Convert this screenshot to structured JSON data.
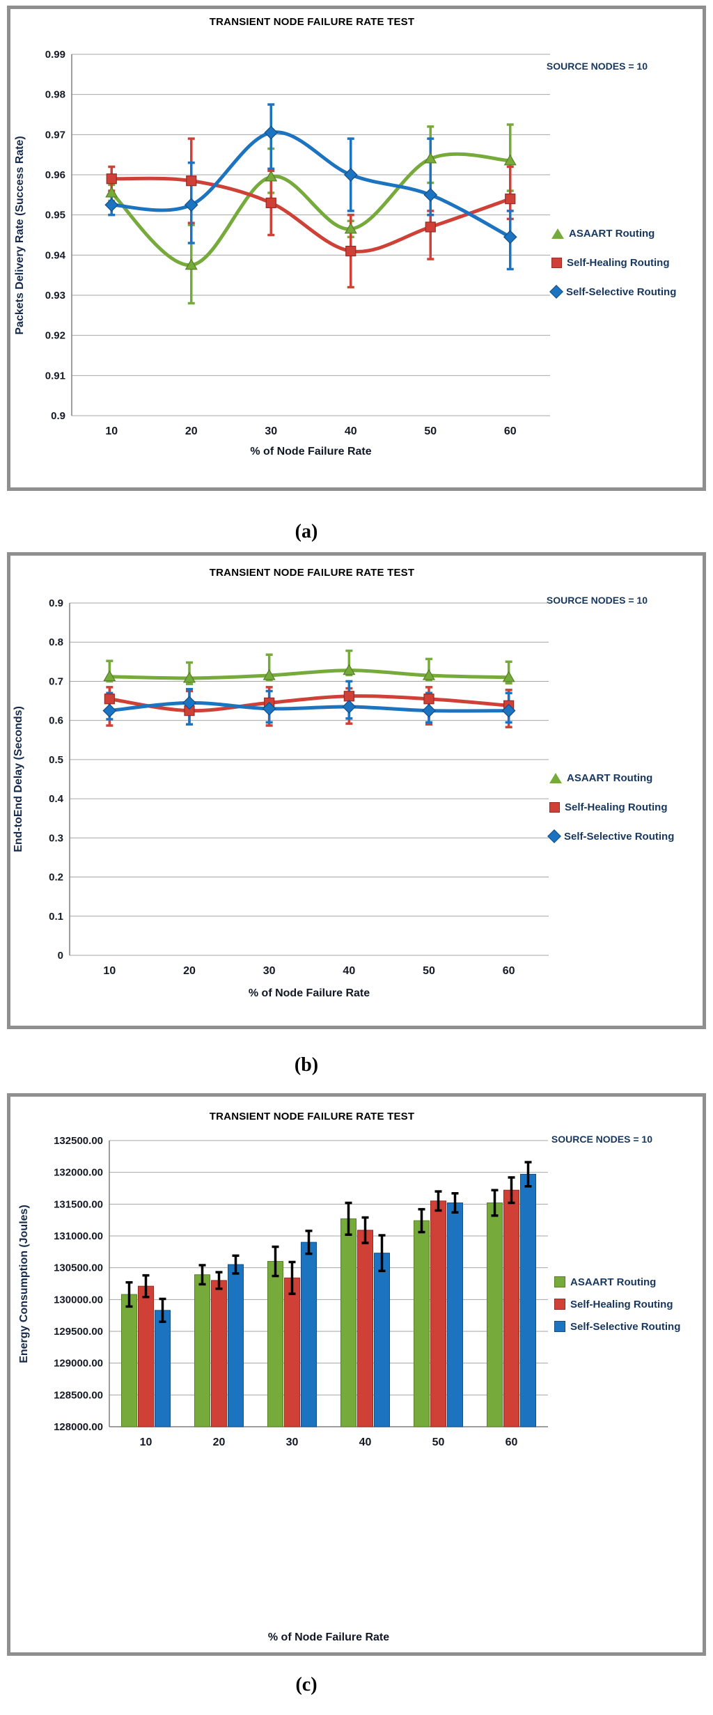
{
  "captions": [
    "(a)",
    "(b)",
    "(c)"
  ],
  "colors": {
    "asaart_green": "#76AB3C",
    "self_healing_red": "#CF4037",
    "self_selective_blue": "#1C73C0",
    "legend_text": "#17375E",
    "gridline": "#A6A6A6",
    "axis_line": "#7F7F7F",
    "panel_border": "#8F8F8F",
    "bar_error": "#000000"
  },
  "chart_data": [
    {
      "id": "a",
      "type": "line",
      "title": "TRANSIENT NODE FAILURE RATE TEST",
      "annotation": "SOURCE NODES = 10",
      "xlabel": "% of Node Failure Rate",
      "ylabel": "Packets Delivery Rate (Success Rate)",
      "categories": [
        10,
        20,
        30,
        40,
        50,
        60
      ],
      "ylim": [
        0.9,
        0.99
      ],
      "y_step": 0.01,
      "y_format": "trim",
      "grid": true,
      "legend_position": "right",
      "series": [
        {
          "name": "ASAART Routing",
          "color": "#76AB3C",
          "edge": "#567F26",
          "marker": "triangle",
          "values": [
            0.9555,
            0.9375,
            0.9595,
            0.9465,
            0.964,
            0.9635
          ],
          "err_up": [
            0.002,
            0.01,
            0.007,
            0.002,
            0.008,
            0.009
          ],
          "err_down": [
            0.002,
            0.0095,
            0.004,
            0.002,
            0.006,
            0.0075
          ]
        },
        {
          "name": "Self-Healing Routing",
          "color": "#CF4037",
          "edge": "#962B24",
          "marker": "square",
          "values": [
            0.959,
            0.9585,
            0.953,
            0.941,
            0.947,
            0.954
          ],
          "err_up": [
            0.003,
            0.0105,
            0.008,
            0.009,
            0.004,
            0.008
          ],
          "err_down": [
            0.003,
            0.0105,
            0.008,
            0.009,
            0.008,
            0.005
          ]
        },
        {
          "name": "Self-Selective Routing",
          "color": "#1C73C0",
          "edge": "#134E87",
          "marker": "diamond",
          "values": [
            0.9525,
            0.9525,
            0.9705,
            0.96,
            0.955,
            0.9445
          ],
          "err_up": [
            0.0025,
            0.0105,
            0.007,
            0.009,
            0.014,
            0.0065
          ],
          "err_down": [
            0.0025,
            0.0095,
            0.009,
            0.009,
            0.005,
            0.008
          ]
        }
      ]
    },
    {
      "id": "b",
      "type": "line",
      "title": "TRANSIENT NODE FAILURE RATE TEST",
      "annotation": "SOURCE NODES = 10",
      "xlabel": "% of Node Failure Rate",
      "ylabel": "End-toEnd Delay (Seconds)",
      "categories": [
        10,
        20,
        30,
        40,
        50,
        60
      ],
      "ylim": [
        0,
        0.9
      ],
      "y_step": 0.1,
      "y_format": "trim",
      "grid": true,
      "legend_position": "right",
      "series": [
        {
          "name": "ASAART Routing",
          "color": "#76AB3C",
          "edge": "#567F26",
          "marker": "triangle",
          "values": [
            0.712,
            0.708,
            0.715,
            0.728,
            0.715,
            0.71
          ],
          "err_up": [
            0.04,
            0.04,
            0.053,
            0.05,
            0.042,
            0.04
          ],
          "err_down": [
            0.012,
            0.015,
            0.012,
            0.012,
            0.012,
            0.015
          ]
        },
        {
          "name": "Self-Healing Routing",
          "color": "#CF4037",
          "edge": "#962B24",
          "marker": "square",
          "values": [
            0.655,
            0.625,
            0.645,
            0.662,
            0.655,
            0.638
          ],
          "err_up": [
            0.03,
            0.05,
            0.04,
            0.02,
            0.03,
            0.04
          ],
          "err_down": [
            0.068,
            0.035,
            0.058,
            0.07,
            0.065,
            0.055
          ]
        },
        {
          "name": "Self-Selective Routing",
          "color": "#1C73C0",
          "edge": "#134E87",
          "marker": "diamond",
          "values": [
            0.625,
            0.645,
            0.63,
            0.635,
            0.625,
            0.625
          ],
          "err_up": [
            0.045,
            0.035,
            0.045,
            0.065,
            0.045,
            0.045
          ],
          "err_down": [
            0.022,
            0.055,
            0.035,
            0.03,
            0.03,
            0.03
          ]
        }
      ]
    },
    {
      "id": "c",
      "type": "bar",
      "title": "TRANSIENT NODE FAILURE RATE TEST",
      "annotation": "SOURCE NODES = 10",
      "xlabel": "% of Node Failure Rate",
      "ylabel": "Energy Consumption (Joules)",
      "categories": [
        10,
        20,
        30,
        40,
        50,
        60
      ],
      "ylim": [
        128000,
        132500
      ],
      "y_step": 500,
      "y_format": "fixed2",
      "grid": true,
      "legend_position": "right",
      "series": [
        {
          "name": "ASAART Routing",
          "color": "#76AB3C",
          "edge": "#567F26",
          "values": [
            130080,
            130390,
            130600,
            131270,
            131240,
            131520
          ],
          "err": [
            190,
            150,
            230,
            250,
            180,
            200
          ]
        },
        {
          "name": "Self-Healing Routing",
          "color": "#CF4037",
          "edge": "#962B24",
          "values": [
            130210,
            130300,
            130340,
            131090,
            131550,
            131720
          ],
          "err": [
            170,
            130,
            250,
            200,
            150,
            200
          ]
        },
        {
          "name": "Self-Selective Routing",
          "color": "#1C73C0",
          "edge": "#134E87",
          "values": [
            129830,
            130550,
            130900,
            130730,
            131520,
            131970
          ],
          "err": [
            180,
            140,
            180,
            280,
            150,
            190
          ]
        }
      ]
    }
  ]
}
